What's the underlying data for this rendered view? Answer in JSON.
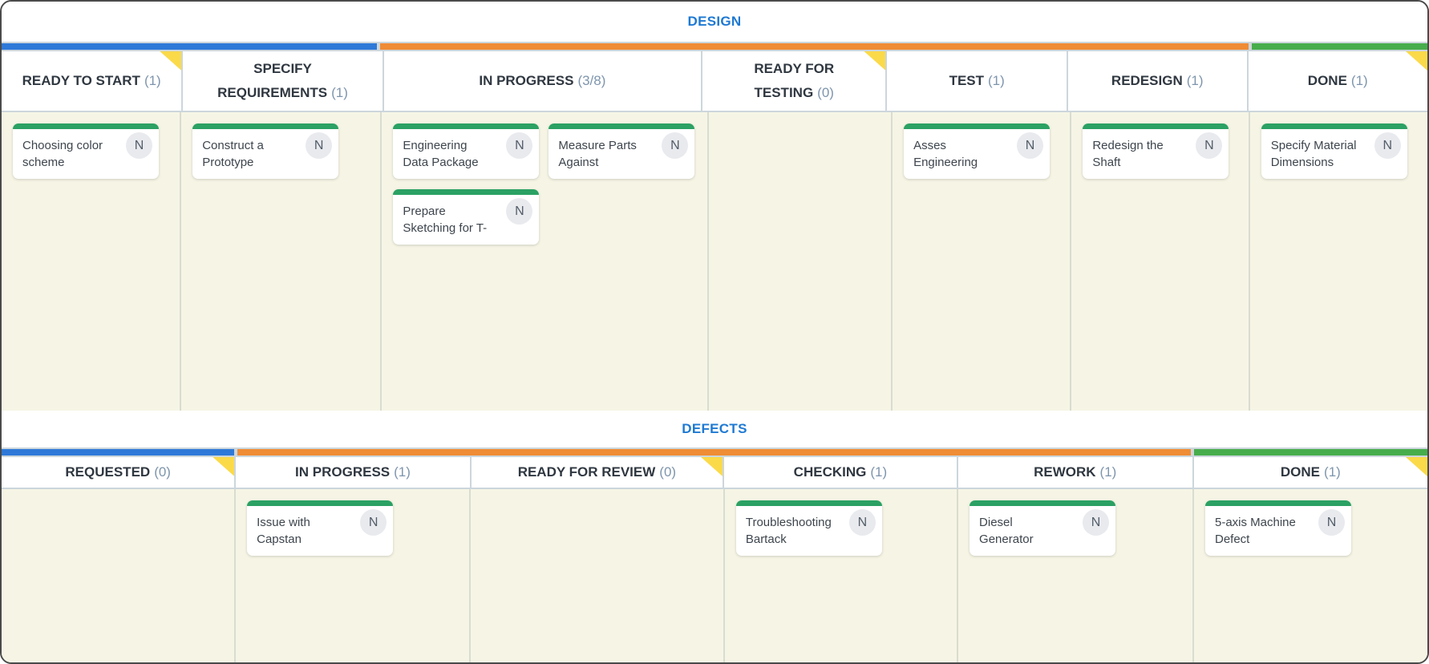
{
  "colors": {
    "stage_blue": "#2e79d8",
    "stage_orange": "#ef8c35",
    "stage_green": "#47ad4c",
    "card_strip_green": "#2ba163",
    "flag_yellow": "#fbda4a",
    "lane_title_blue": "#1e79d2",
    "count_gray_blue": "#7e95ad",
    "lane_body_cream": "#f6f5e5"
  },
  "board": {
    "lanes": [
      {
        "title": "DESIGN",
        "columns": [
          {
            "label": "READY TO START",
            "count": "(1)",
            "group": "blue",
            "flag": true,
            "cards": [
              {
                "title": "Choosing color scheme",
                "badge": "N"
              }
            ]
          },
          {
            "label": "SPECIFY REQUIREMENTS",
            "count": "(1)",
            "group": "blue",
            "flag": false,
            "cards": [
              {
                "title": "Construct a Prototype",
                "badge": "N"
              }
            ]
          },
          {
            "label": "IN PROGRESS",
            "count": "(3/8)",
            "group": "orange",
            "flag": false,
            "cards": [
              {
                "title": "Engineering Data Package",
                "badge": "N"
              },
              {
                "title": "Measure Parts Against",
                "badge": "N"
              },
              {
                "title": "Prepare Sketching for T-",
                "badge": "N"
              }
            ]
          },
          {
            "label": "READY FOR TESTING",
            "count": "(0)",
            "group": "orange",
            "flag": true,
            "cards": []
          },
          {
            "label": "TEST",
            "count": "(1)",
            "group": "orange",
            "flag": false,
            "cards": [
              {
                "title": "Asses Engineering",
                "badge": "N"
              }
            ]
          },
          {
            "label": "REDESIGN",
            "count": "(1)",
            "group": "orange",
            "flag": false,
            "cards": [
              {
                "title": "Redesign the Shaft",
                "badge": "N"
              }
            ]
          },
          {
            "label": "DONE",
            "count": "(1)",
            "group": "green",
            "flag": true,
            "cards": [
              {
                "title": "Specify Material Dimensions",
                "badge": "N"
              }
            ]
          }
        ]
      },
      {
        "title": "DEFECTS",
        "columns": [
          {
            "label": "REQUESTED",
            "count": "(0)",
            "group": "blue",
            "flag": true,
            "cards": []
          },
          {
            "label": "IN PROGRESS",
            "count": "(1)",
            "group": "orange",
            "flag": false,
            "cards": [
              {
                "title": "Issue with Capstan",
                "badge": "N"
              }
            ]
          },
          {
            "label": "READY FOR REVIEW",
            "count": "(0)",
            "group": "orange",
            "flag": true,
            "cards": []
          },
          {
            "label": "CHECKING",
            "count": "(1)",
            "group": "orange",
            "flag": false,
            "cards": [
              {
                "title": "Troubleshooting Bartack",
                "badge": "N"
              }
            ]
          },
          {
            "label": "REWORK",
            "count": "(1)",
            "group": "orange",
            "flag": false,
            "cards": [
              {
                "title": "Diesel Generator",
                "badge": "N"
              }
            ]
          },
          {
            "label": "DONE",
            "count": "(1)",
            "group": "green",
            "flag": true,
            "cards": [
              {
                "title": "5-axis Machine Defect",
                "badge": "N"
              }
            ]
          }
        ]
      }
    ]
  }
}
